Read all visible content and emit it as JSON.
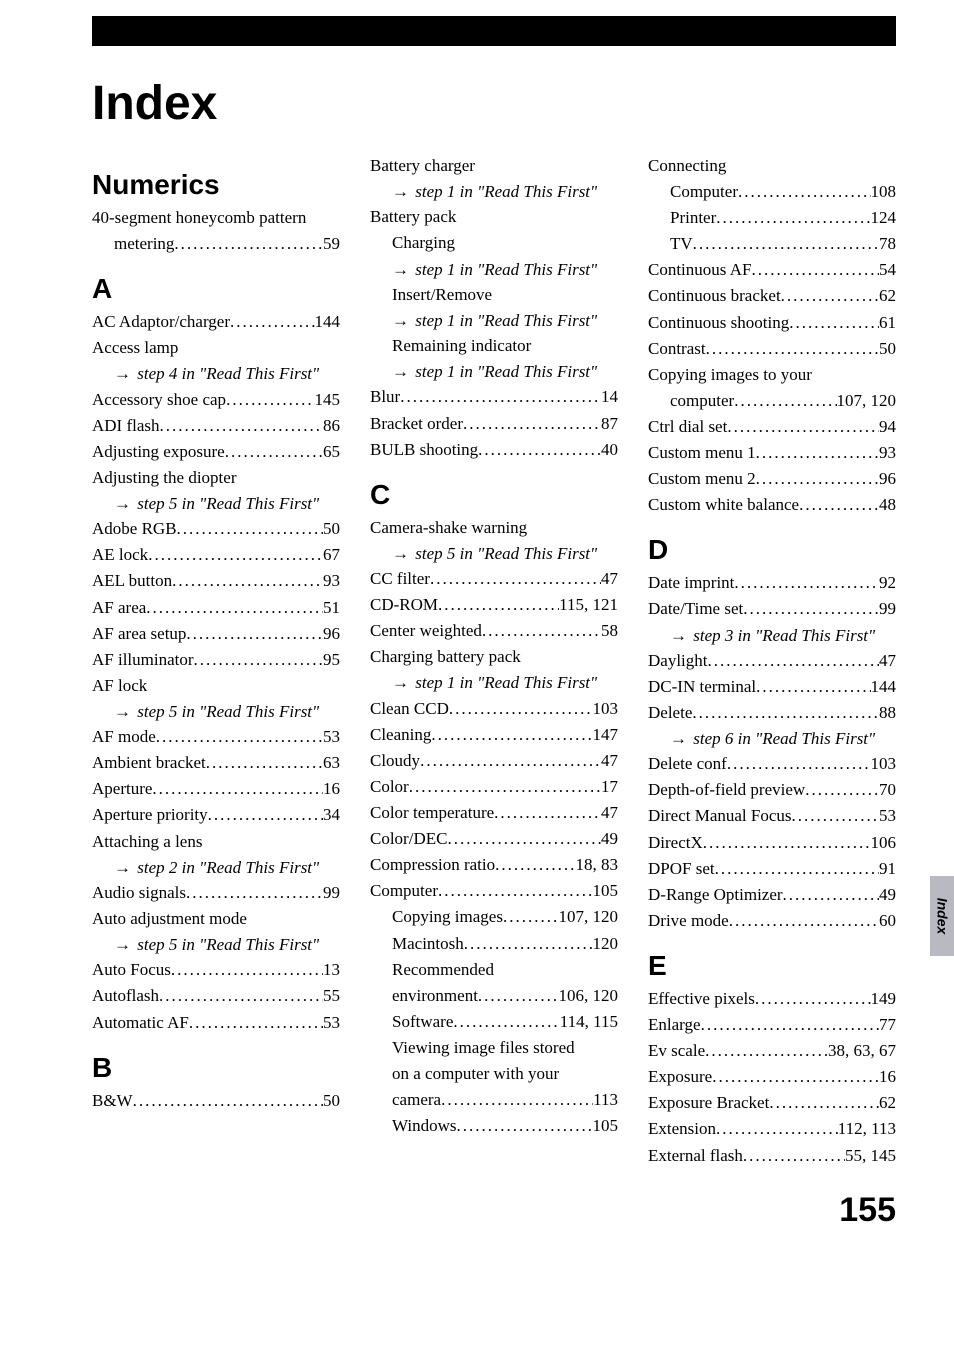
{
  "title": "Index",
  "pageNumber": "155",
  "sideTab": "Index",
  "readThis": {
    "step1": "step 1 in \"Read This First\"",
    "step2": "step 2 in \"Read This First\"",
    "step3": "step 3 in \"Read This First\"",
    "step4": "step 4 in \"Read This First\"",
    "step5": "step 5 in \"Read This First\"",
    "step6": "step 6 in \"Read This First\""
  },
  "col1": {
    "sec1": {
      "head": "Numerics"
    },
    "e1": {
      "label": "40-segment honeycomb pattern"
    },
    "e1b": {
      "label": "metering",
      "page": "59"
    },
    "sec2": {
      "head": "A"
    },
    "a1": {
      "label": "AC Adaptor/charger",
      "page": "144"
    },
    "a2": {
      "label": "Access lamp"
    },
    "a3": {
      "label": "Accessory shoe cap",
      "page": "145"
    },
    "a4": {
      "label": "ADI flash",
      "page": "86"
    },
    "a5": {
      "label": "Adjusting exposure",
      "page": "65"
    },
    "a6": {
      "label": "Adjusting the diopter"
    },
    "a7": {
      "label": "Adobe RGB",
      "page": "50"
    },
    "a8": {
      "label": "AE lock",
      "page": "67"
    },
    "a9": {
      "label": "AEL button",
      "page": "93"
    },
    "a10": {
      "label": "AF area",
      "page": "51"
    },
    "a11": {
      "label": "AF area setup",
      "page": "96"
    },
    "a12": {
      "label": "AF illuminator",
      "page": "95"
    },
    "a13": {
      "label": "AF lock"
    },
    "a14": {
      "label": "AF mode",
      "page": "53"
    },
    "a15": {
      "label": "Ambient bracket",
      "page": "63"
    },
    "a16": {
      "label": "Aperture",
      "page": "16"
    },
    "a17": {
      "label": "Aperture priority",
      "page": "34"
    },
    "a18": {
      "label": "Attaching a lens"
    },
    "a19": {
      "label": "Audio signals",
      "page": "99"
    },
    "a20": {
      "label": "Auto adjustment mode"
    },
    "a21": {
      "label": "Auto Focus",
      "page": "13"
    },
    "a22": {
      "label": "Autoflash",
      "page": "55"
    },
    "a23": {
      "label": "Automatic AF",
      "page": "53"
    },
    "sec3": {
      "head": "B"
    },
    "b1": {
      "label": "B&W",
      "page": "50"
    }
  },
  "col2": {
    "b2": {
      "label": "Battery charger"
    },
    "b3": {
      "label": "Battery pack"
    },
    "b3a": {
      "label": "Charging"
    },
    "b3b": {
      "label": "Insert/Remove"
    },
    "b3c": {
      "label": "Remaining indicator"
    },
    "b4": {
      "label": "Blur",
      "page": "14"
    },
    "b5": {
      "label": "Bracket order",
      "page": "87"
    },
    "b6": {
      "label": "BULB shooting",
      "page": "40"
    },
    "secC": {
      "head": "C"
    },
    "c1": {
      "label": "Camera-shake warning"
    },
    "c2": {
      "label": "CC filter",
      "page": "47"
    },
    "c3": {
      "label": "CD-ROM",
      "page": "115, 121"
    },
    "c4": {
      "label": "Center weighted",
      "page": "58"
    },
    "c5": {
      "label": "Charging battery pack"
    },
    "c6": {
      "label": "Clean CCD",
      "page": "103"
    },
    "c7": {
      "label": "Cleaning",
      "page": "147"
    },
    "c8": {
      "label": "Cloudy",
      "page": "47"
    },
    "c9": {
      "label": "Color",
      "page": "17"
    },
    "c10": {
      "label": "Color temperature",
      "page": "47"
    },
    "c11": {
      "label": "Color/DEC",
      "page": "49"
    },
    "c12": {
      "label": "Compression ratio",
      "page": "18, 83"
    },
    "c13": {
      "label": "Computer",
      "page": "105"
    },
    "c13a": {
      "label": "Copying images",
      "page": "107, 120"
    },
    "c13b": {
      "label": "Macintosh",
      "page": "120"
    },
    "c13c1": {
      "label": "Recommended"
    },
    "c13c2": {
      "label": "environment",
      "page": "106, 120"
    },
    "c13d": {
      "label": "Software",
      "page": "114, 115"
    },
    "c13e1": {
      "label": "Viewing image files stored"
    },
    "c13e2": {
      "label": "on a computer with your"
    },
    "c13e3": {
      "label": "camera",
      "page": "113"
    },
    "c13f": {
      "label": "Windows",
      "page": "105"
    }
  },
  "col3": {
    "c14": {
      "label": "Connecting"
    },
    "c14a": {
      "label": "Computer",
      "page": "108"
    },
    "c14b": {
      "label": "Printer",
      "page": "124"
    },
    "c14c": {
      "label": "TV",
      "page": "78"
    },
    "c15": {
      "label": "Continuous AF",
      "page": "54"
    },
    "c16": {
      "label": "Continuous bracket",
      "page": "62"
    },
    "c17": {
      "label": "Continuous shooting",
      "page": "61"
    },
    "c18": {
      "label": "Contrast",
      "page": "50"
    },
    "c19a": {
      "label": "Copying images to your"
    },
    "c19b": {
      "label": "computer",
      "page": "107, 120"
    },
    "c20": {
      "label": "Ctrl dial set",
      "page": "94"
    },
    "c21": {
      "label": "Custom menu 1",
      "page": "93"
    },
    "c22": {
      "label": "Custom menu 2",
      "page": "96"
    },
    "c23": {
      "label": "Custom white balance",
      "page": "48"
    },
    "secD": {
      "head": "D"
    },
    "d1": {
      "label": "Date imprint",
      "page": "92"
    },
    "d2": {
      "label": "Date/Time set",
      "page": "99"
    },
    "d3": {
      "label": "Daylight",
      "page": "47"
    },
    "d4": {
      "label": "DC-IN terminal",
      "page": "144"
    },
    "d5": {
      "label": "Delete",
      "page": "88"
    },
    "d6": {
      "label": "Delete conf",
      "page": "103"
    },
    "d7": {
      "label": "Depth-of-field preview",
      "page": "70"
    },
    "d8": {
      "label": "Direct Manual Focus",
      "page": "53"
    },
    "d9": {
      "label": "DirectX",
      "page": "106"
    },
    "d10": {
      "label": "DPOF set",
      "page": "91"
    },
    "d11": {
      "label": "D-Range Optimizer",
      "page": "49"
    },
    "d12": {
      "label": "Drive mode",
      "page": "60"
    },
    "secE": {
      "head": "E"
    },
    "e1": {
      "label": "Effective pixels",
      "page": "149"
    },
    "e2": {
      "label": "Enlarge",
      "page": "77"
    },
    "e3": {
      "label": "Ev scale",
      "page": "38, 63, 67"
    },
    "e4": {
      "label": "Exposure",
      "page": "16"
    },
    "e5": {
      "label": "Exposure Bracket",
      "page": "62"
    },
    "e6": {
      "label": "Extension",
      "page": "112, 113"
    },
    "e7": {
      "label": "External flash",
      "page": "55, 145"
    }
  }
}
